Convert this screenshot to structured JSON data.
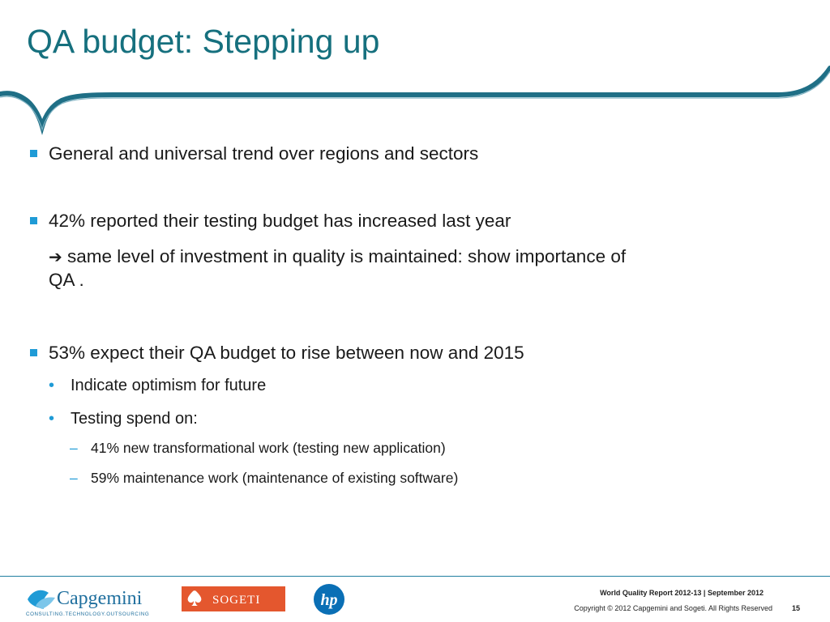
{
  "slide": {
    "title": "QA budget: Stepping up",
    "bullets": [
      {
        "text": "General and universal trend over regions and sectors"
      },
      {
        "text": "42% reported their testing budget has increased last year"
      },
      {
        "arrow": "➔",
        "continuation": " same level of investment in quality is maintained: show importance of",
        "continuation2": "QA ."
      },
      {
        "text": "53% expect their QA budget to rise between now and 2015"
      }
    ],
    "sub_bullets": [
      {
        "marker": "•",
        "text": "Indicate optimism for future"
      },
      {
        "marker": "•",
        "text": "Testing spend on:"
      }
    ],
    "sub_sub_bullets": [
      {
        "marker": "–",
        "text": "41% new transformational work (testing new application)"
      },
      {
        "marker": "–",
        "text": "59% maintenance work (maintenance of existing software)"
      }
    ]
  },
  "footer": {
    "report": "World Quality Report 2012-13 | September 2012",
    "copyright": "Copyright © 2012 Capgemini and Sogeti. All Rights Reserved",
    "page_number": "15",
    "logos": {
      "capgemini": "Capgemini",
      "capgemini_tagline": "CONSULTING.TECHNOLOGY.OUTSOURCING",
      "sogeti": "SOGETI",
      "hp": "hp"
    }
  },
  "colors": {
    "title": "#16707e",
    "accent": "#1f9bd6",
    "swoosh": "#1f6f86"
  },
  "icons": [
    "square-bullet-icon",
    "right-arrow-icon",
    "hp-logo-icon",
    "spade-icon"
  ]
}
